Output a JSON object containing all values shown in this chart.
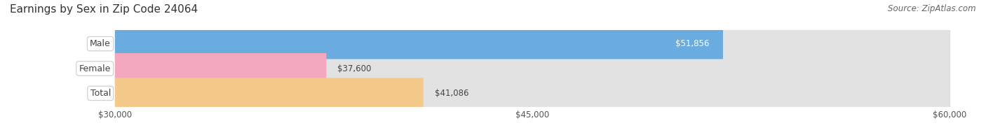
{
  "title": "Earnings by Sex in Zip Code 24064",
  "source": "Source: ZipAtlas.com",
  "categories": [
    "Male",
    "Female",
    "Total"
  ],
  "values": [
    51856,
    37600,
    41086
  ],
  "value_labels": [
    "$51,856",
    "$37,600",
    "$41,086"
  ],
  "bar_colors": [
    "#6aabe0",
    "#f4a8be",
    "#f5c98a"
  ],
  "bar_track_color": "#e2e2e2",
  "xmin": 30000,
  "xmax": 60000,
  "xticks": [
    30000,
    45000,
    60000
  ],
  "xtick_labels": [
    "$30,000",
    "$45,000",
    "$60,000"
  ],
  "label_text_color": "#444444",
  "title_fontsize": 11,
  "source_fontsize": 8.5,
  "bar_label_fontsize": 9,
  "value_label_fontsize": 8.5,
  "background_color": "#ffffff",
  "bar_height": 0.62,
  "fig_width": 14.06,
  "fig_height": 1.96,
  "value_inside_threshold": 50000
}
